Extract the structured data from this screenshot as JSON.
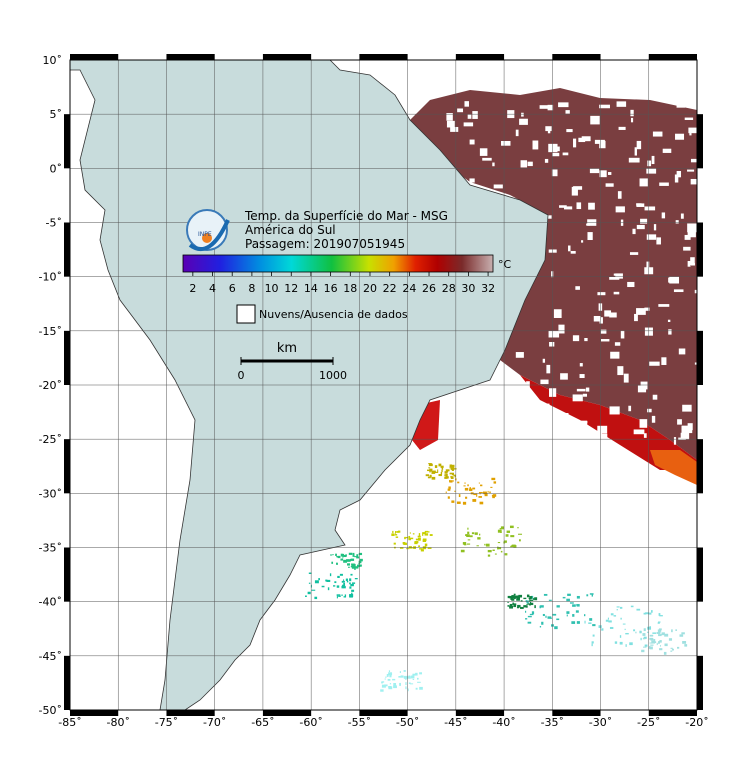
{
  "map": {
    "title": [
      "Temp. da Superfície do Mar - MSG",
      "América do Sul",
      "Passagem: 201907051945"
    ],
    "logo": "INPE",
    "colorbar": {
      "unit": "°C",
      "lim": [
        1,
        32.5
      ],
      "ticks": [
        2,
        4,
        6,
        8,
        10,
        12,
        14,
        16,
        18,
        20,
        22,
        24,
        26,
        28,
        30,
        32
      ]
    },
    "legend": "Nuvens/Ausencia de dados",
    "scale_bar": {
      "unit": "km",
      "ticks": [
        0,
        1000
      ]
    },
    "lon_axis": {
      "lim": [
        -85,
        -20
      ],
      "ticks": [
        {
          "value": -85,
          "label": "-85˚"
        },
        {
          "value": -80,
          "label": "-80˚"
        },
        {
          "value": -75,
          "label": "-75˚"
        },
        {
          "value": -70,
          "label": "-70˚"
        },
        {
          "value": -65,
          "label": "-65˚"
        },
        {
          "value": -60,
          "label": "-60˚"
        },
        {
          "value": -55,
          "label": "-55˚"
        },
        {
          "value": -50,
          "label": "-50˚"
        },
        {
          "value": -45,
          "label": "-45˚"
        },
        {
          "value": -40,
          "label": "-40˚"
        },
        {
          "value": -35,
          "label": "-35˚"
        },
        {
          "value": -30,
          "label": "-30˚"
        },
        {
          "value": -25,
          "label": "-25˚"
        },
        {
          "value": -20,
          "label": "-20˚"
        }
      ]
    },
    "lat_axis": {
      "lim": [
        10,
        -50
      ],
      "ticks": [
        {
          "value": 10,
          "label": "10˚"
        },
        {
          "value": 5,
          "label": "5˚"
        },
        {
          "value": 0,
          "label": "0˚"
        },
        {
          "value": -5,
          "label": "-5˚"
        },
        {
          "value": -10,
          "label": "-10˚"
        },
        {
          "value": -15,
          "label": "-15˚"
        },
        {
          "value": -20,
          "label": "-20˚"
        },
        {
          "value": -25,
          "label": "-25˚"
        },
        {
          "value": -30,
          "label": "-30˚"
        },
        {
          "value": -35,
          "label": "-35˚"
        },
        {
          "value": -40,
          "label": "-40˚"
        },
        {
          "value": -45,
          "label": "-45˚"
        },
        {
          "value": -50,
          "label": "-50˚"
        }
      ]
    }
  }
}
